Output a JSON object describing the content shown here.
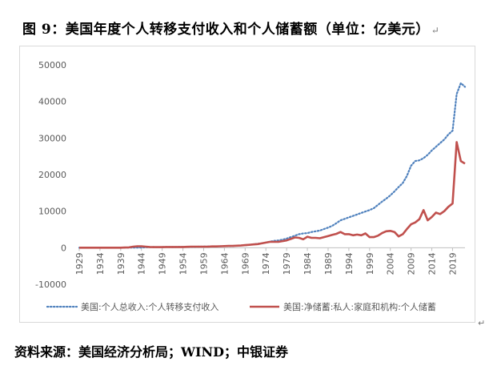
{
  "figure": {
    "title": "图 9：美国年度个人转移支付收入和个人储蓄额（单位：亿美元）",
    "paragraph_mark": "↵",
    "source": "资料来源：美国经济分析局；WIND；中银证券"
  },
  "chart_data": {
    "type": "line",
    "title": "",
    "xlabel": "",
    "ylabel": "",
    "ylim": [
      -10000,
      50000
    ],
    "yticks": [
      -10000,
      0,
      10000,
      20000,
      30000,
      40000,
      50000
    ],
    "ytick_labels": [
      "-10000",
      "0",
      "10000",
      "20000",
      "30000",
      "40000",
      "50000"
    ],
    "x": [
      1929,
      1930,
      1931,
      1932,
      1933,
      1934,
      1935,
      1936,
      1937,
      1938,
      1939,
      1940,
      1941,
      1942,
      1943,
      1944,
      1945,
      1946,
      1947,
      1948,
      1949,
      1950,
      1951,
      1952,
      1953,
      1954,
      1955,
      1956,
      1957,
      1958,
      1959,
      1960,
      1961,
      1962,
      1963,
      1964,
      1965,
      1966,
      1967,
      1968,
      1969,
      1970,
      1971,
      1972,
      1973,
      1974,
      1975,
      1976,
      1977,
      1978,
      1979,
      1980,
      1981,
      1982,
      1983,
      1984,
      1985,
      1986,
      1987,
      1988,
      1989,
      1990,
      1991,
      1992,
      1993,
      1994,
      1995,
      1996,
      1997,
      1998,
      1999,
      2000,
      2001,
      2002,
      2003,
      2004,
      2005,
      2006,
      2007,
      2008,
      2009,
      2010,
      2011,
      2012,
      2013,
      2014,
      2015,
      2016,
      2017,
      2018,
      2019,
      2020,
      2021,
      2022
    ],
    "xticks": [
      1929,
      1934,
      1939,
      1944,
      1949,
      1954,
      1959,
      1964,
      1969,
      1974,
      1979,
      1984,
      1989,
      1994,
      1999,
      2004,
      2009,
      2014,
      2019
    ],
    "grid": false,
    "legend_position": "bottom",
    "series": [
      {
        "name": "美国:个人总收入:个人转移支付收入",
        "color": "#4f81bd",
        "style": "dotted",
        "values": [
          10,
          10,
          20,
          20,
          20,
          20,
          30,
          30,
          30,
          30,
          30,
          30,
          30,
          30,
          30,
          60,
          110,
          160,
          180,
          170,
          190,
          200,
          180,
          180,
          200,
          210,
          220,
          240,
          270,
          300,
          320,
          340,
          370,
          390,
          400,
          420,
          450,
          480,
          540,
          600,
          680,
          800,
          950,
          1050,
          1200,
          1400,
          1700,
          1900,
          2000,
          2200,
          2500,
          2900,
          3300,
          3700,
          3900,
          4000,
          4300,
          4500,
          4700,
          5100,
          5500,
          6000,
          6700,
          7500,
          7900,
          8300,
          8700,
          9100,
          9500,
          9900,
          10300,
          10800,
          11700,
          12600,
          13400,
          14300,
          15400,
          16600,
          17700,
          19600,
          22400,
          23700,
          23900,
          24500,
          25400,
          26600,
          27600,
          28600,
          29600,
          31000,
          32000,
          42000,
          45000,
          44000
        ]
      },
      {
        "name": "美国:净储蓄:私人:家庭和机构:个人储蓄",
        "color": "#c0504d",
        "style": "solid",
        "values": [
          0,
          0,
          0,
          0,
          0,
          0,
          0,
          0,
          0,
          0,
          0,
          50,
          100,
          300,
          400,
          400,
          300,
          200,
          150,
          150,
          150,
          200,
          200,
          200,
          200,
          200,
          250,
          300,
          300,
          300,
          300,
          300,
          350,
          350,
          400,
          450,
          500,
          500,
          550,
          600,
          700,
          800,
          900,
          1000,
          1200,
          1400,
          1600,
          1600,
          1600,
          1800,
          2000,
          2400,
          2800,
          2700,
          2300,
          3000,
          2700,
          2700,
          2600,
          2900,
          3200,
          3500,
          3800,
          4300,
          3700,
          3700,
          3400,
          3600,
          3400,
          3900,
          2900,
          2900,
          3300,
          4000,
          4500,
          4600,
          4300,
          3100,
          3700,
          5100,
          6400,
          6900,
          7800,
          10300,
          7500,
          8400,
          9600,
          9200,
          10000,
          11200,
          12100,
          28900,
          23700,
          23000
        ]
      }
    ]
  }
}
